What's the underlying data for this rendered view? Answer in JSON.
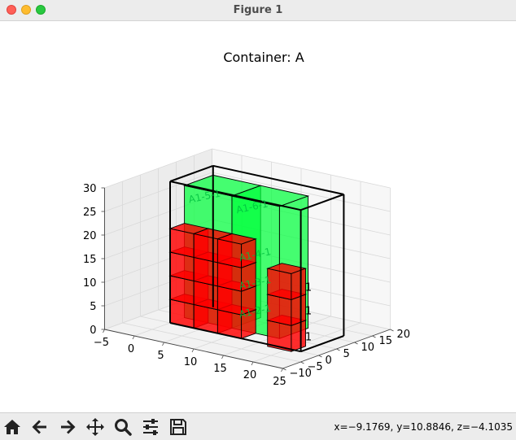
{
  "window": {
    "title": "Figure 1"
  },
  "toolbar": {
    "buttons": [
      {
        "name": "home-button",
        "icon": "home-icon"
      },
      {
        "name": "back-button",
        "icon": "arrow-left-icon"
      },
      {
        "name": "forward-button",
        "icon": "arrow-right-icon"
      },
      {
        "name": "pan-button",
        "icon": "move-icon"
      },
      {
        "name": "zoom-button",
        "icon": "magnifier-icon"
      },
      {
        "name": "configure-subplots-button",
        "icon": "sliders-icon"
      },
      {
        "name": "save-button",
        "icon": "floppy-disk-icon"
      }
    ],
    "coords": "x=−9.1769, y=10.8846, z=−4.1035"
  },
  "plot": {
    "title": "Container: A",
    "x_ticks": [
      "−5",
      "0",
      "5",
      "10",
      "15",
      "20",
      "25"
    ],
    "y_ticks": [
      "−10",
      "−5",
      "0",
      "5",
      "10",
      "15",
      "20"
    ],
    "z_ticks": [
      "0",
      "5",
      "10",
      "15",
      "20",
      "25",
      "30"
    ],
    "green_labels": [
      "A1-5-1",
      "A1-6-1",
      "A1-4-1",
      "A1-3-1",
      "A1-2-1"
    ],
    "side_labels": [
      "1",
      "1",
      "1"
    ],
    "colors": {
      "red_box": "#ff0000",
      "green_box": "#00ff3c",
      "edge": "#000000",
      "container": "#000000"
    }
  }
}
